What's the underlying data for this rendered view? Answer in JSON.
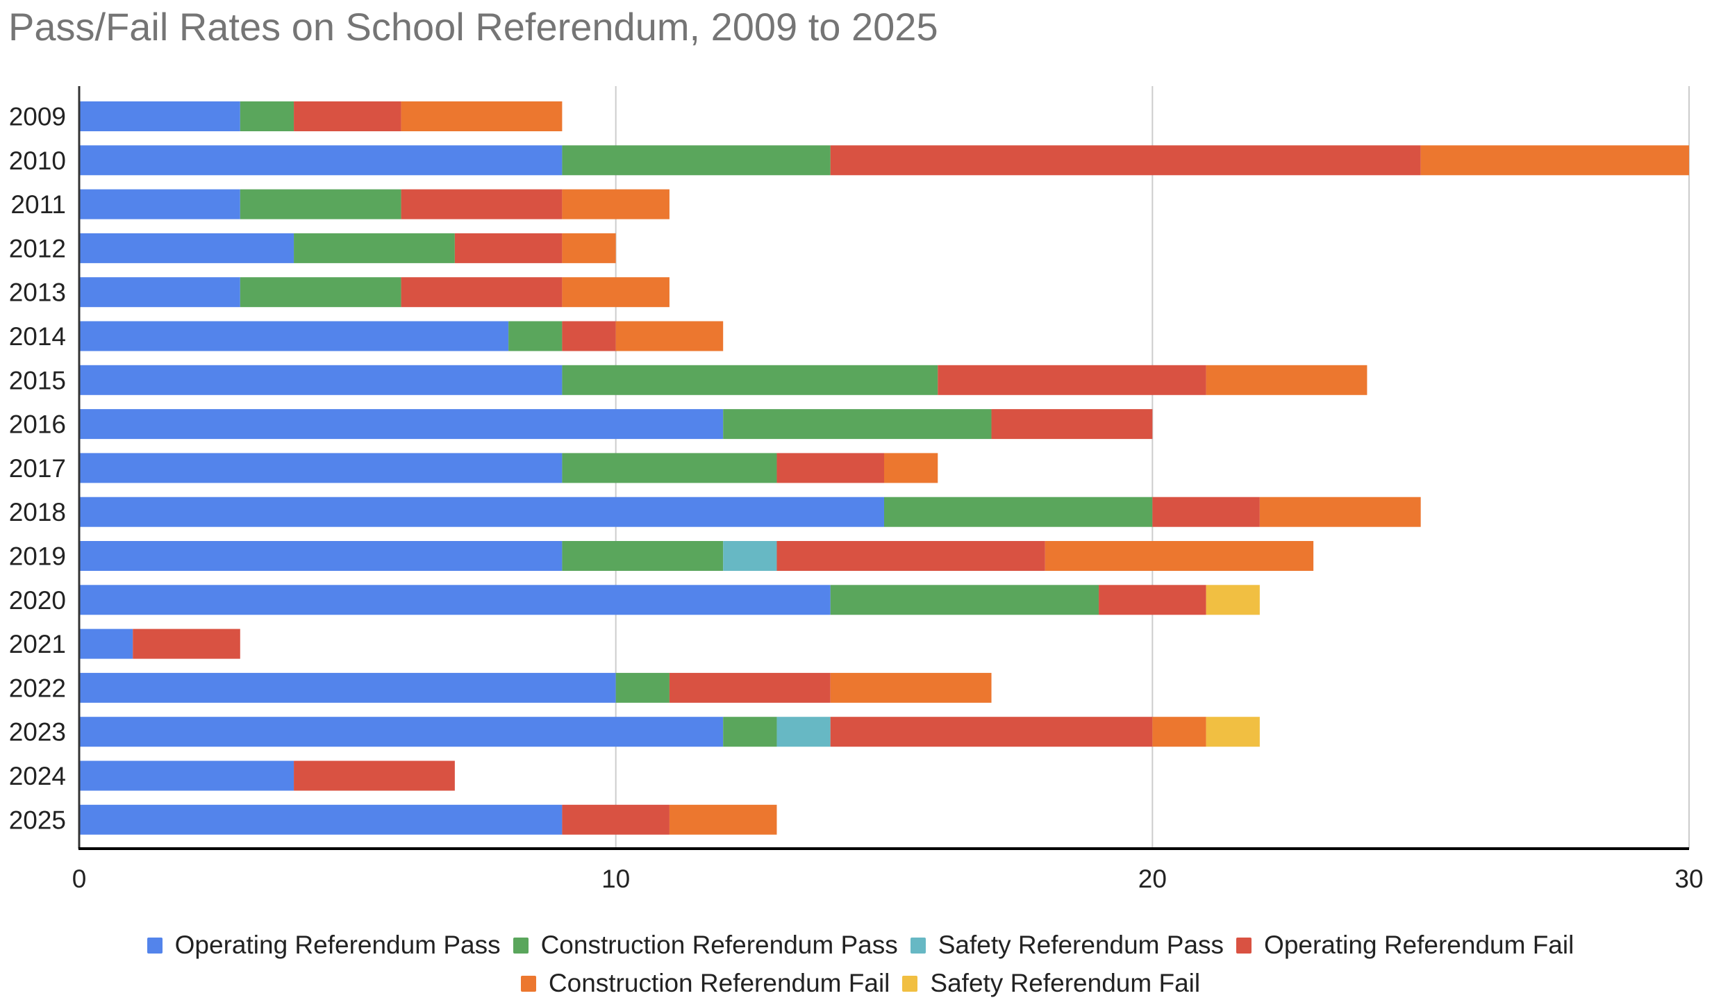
{
  "chart_data": {
    "type": "bar",
    "orientation": "horizontal",
    "stacked": true,
    "title": "Pass/Fail Rates on School Referendum, 2009 to 2025",
    "xlabel": "",
    "ylabel": "",
    "xlim": [
      0,
      30
    ],
    "x_ticks": [
      "0",
      "10",
      "20",
      "30"
    ],
    "x_tick_values": [
      0,
      10,
      20,
      30
    ],
    "grid": true,
    "legend_position": "bottom",
    "categories": [
      "2009",
      "2010",
      "2011",
      "2012",
      "2013",
      "2014",
      "2015",
      "2016",
      "2017",
      "2018",
      "2019",
      "2020",
      "2021",
      "2022",
      "2023",
      "2024",
      "2025"
    ],
    "series": [
      {
        "name": "Operating Referendum Pass",
        "color": "#5384EB",
        "values": [
          3,
          9,
          3,
          4,
          3,
          8,
          9,
          12,
          9,
          15,
          9,
          14,
          1,
          10,
          12,
          4,
          9
        ]
      },
      {
        "name": "Construction Referendum Pass",
        "color": "#5AA65C",
        "values": [
          1,
          5,
          3,
          3,
          3,
          1,
          7,
          5,
          4,
          5,
          3,
          5,
          0,
          1,
          1,
          0,
          0
        ]
      },
      {
        "name": "Safety Referendum Pass",
        "color": "#67B8C4",
        "values": [
          0,
          0,
          0,
          0,
          0,
          0,
          0,
          0,
          0,
          0,
          1,
          0,
          0,
          0,
          1,
          0,
          0
        ]
      },
      {
        "name": "Operating Referendum Fail",
        "color": "#D95242",
        "values": [
          2,
          11,
          3,
          2,
          3,
          1,
          5,
          3,
          2,
          2,
          5,
          2,
          2,
          3,
          6,
          3,
          2
        ]
      },
      {
        "name": "Construction Referendum Fail",
        "color": "#EC772F",
        "values": [
          3,
          5,
          2,
          1,
          2,
          2,
          3,
          0,
          1,
          3,
          5,
          0,
          0,
          3,
          1,
          0,
          2
        ]
      },
      {
        "name": "Safety Referendum Fail",
        "color": "#F1BF42",
        "values": [
          0,
          0,
          0,
          0,
          0,
          0,
          0,
          0,
          0,
          0,
          0,
          1,
          0,
          0,
          1,
          0,
          0
        ]
      }
    ]
  },
  "legend": {
    "row1": [
      {
        "label": "Operating Referendum Pass",
        "color": "#5384EB"
      },
      {
        "label": "Construction Referendum Pass",
        "color": "#5AA65C"
      },
      {
        "label": "Safety Referendum Pass",
        "color": "#67B8C4"
      },
      {
        "label": "Operating Referendum Fail",
        "color": "#D95242"
      }
    ],
    "row2": [
      {
        "label": "Construction Referendum Fail",
        "color": "#EC772F"
      },
      {
        "label": "Safety Referendum Fail",
        "color": "#F1BF42"
      }
    ]
  },
  "colors": {
    "title": "#757575",
    "text": "#222222",
    "gridline": "#cccccc",
    "axis": "#333333"
  }
}
